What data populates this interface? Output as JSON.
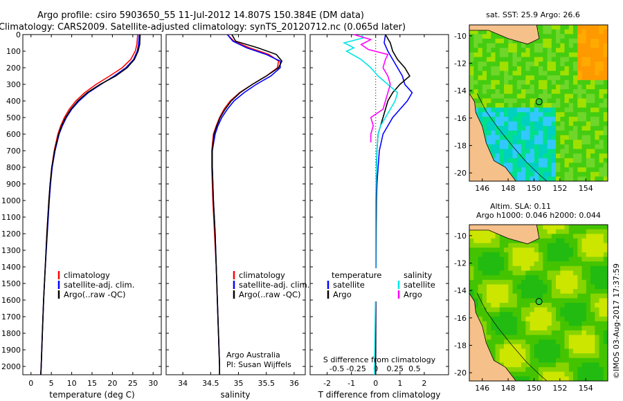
{
  "header": {
    "line1": "Argo profile: csiro 5903650_55 11-Jul-2012 14.807S 150.384E (DM data)",
    "line2": "Climatology: CARS2009. Satellite-adjusted climatology: synTS_20120712.nc (0.065d later)"
  },
  "colors": {
    "climatology": "#ff0000",
    "satellite": "#0000ff",
    "argo": "#000000",
    "salinity_satellite": "#00e5e5",
    "salinity_argo": "#ff00ff"
  },
  "chart_data": [
    {
      "type": "line",
      "name": "temperature-profile",
      "xlabel": "temperature (deg C)",
      "xlim": [
        -2,
        32
      ],
      "ylim": [
        2050,
        0
      ],
      "xticks": [
        0,
        5,
        10,
        15,
        20,
        25,
        30
      ],
      "yticks": [
        0,
        100,
        200,
        300,
        400,
        500,
        600,
        700,
        800,
        900,
        1000,
        1100,
        1200,
        1300,
        1400,
        1500,
        1600,
        1700,
        1800,
        1900,
        2000
      ],
      "legend": [
        "climatology",
        "satellite-adj. clim.",
        "Argo(..raw -QC)"
      ],
      "series": [
        {
          "name": "climatology",
          "depth": [
            0,
            60,
            100,
            150,
            200,
            250,
            300,
            350,
            400,
            450,
            500,
            550,
            600,
            700,
            800,
            900,
            1000,
            1200,
            1400,
            1600,
            1800,
            2000,
            2050
          ],
          "values": [
            26.2,
            26.0,
            25.6,
            24.5,
            22.4,
            19.3,
            16.0,
            13.2,
            11.0,
            9.4,
            8.2,
            7.3,
            6.6,
            5.7,
            5.1,
            4.7,
            4.4,
            3.9,
            3.5,
            3.1,
            2.8,
            2.5,
            2.4
          ]
        },
        {
          "name": "satellite-adj. clim.",
          "depth": [
            0,
            60,
            100,
            150,
            200,
            250,
            300,
            350,
            400,
            450,
            500,
            550,
            600,
            700,
            800,
            900,
            1000,
            1200,
            1400,
            1600,
            1800,
            2000,
            2050
          ],
          "values": [
            26.6,
            26.4,
            26.1,
            25.2,
            23.3,
            20.4,
            17.2,
            14.1,
            11.8,
            10.0,
            8.7,
            7.7,
            6.9,
            5.9,
            5.2,
            4.8,
            4.5,
            4.0,
            3.5,
            3.1,
            2.8,
            2.5,
            2.4
          ]
        },
        {
          "name": "Argo",
          "depth": [
            0,
            60,
            100,
            150,
            200,
            250,
            300,
            350,
            400,
            450,
            500,
            550,
            600,
            700,
            800,
            900,
            1000,
            1200,
            1400,
            1600,
            1800,
            2000,
            2050
          ],
          "values": [
            26.8,
            26.7,
            26.3,
            25.4,
            23.6,
            20.8,
            17.0,
            13.8,
            11.5,
            9.8,
            8.5,
            7.5,
            6.8,
            5.8,
            5.1,
            4.7,
            4.4,
            3.9,
            3.5,
            3.1,
            2.8,
            2.5,
            2.4
          ]
        }
      ]
    },
    {
      "type": "line",
      "name": "salinity-profile",
      "xlabel": "salinity",
      "xlim": [
        33.7,
        36.2
      ],
      "ylim": [
        2050,
        0
      ],
      "xticks": [
        34,
        34.5,
        35,
        35.5,
        36
      ],
      "legend": [
        "climatology",
        "satellite-adj. clim.",
        "Argo(..raw -QC)"
      ],
      "annotation": [
        "Argo Australia",
        "PI: Susan Wijffels"
      ],
      "series": [
        {
          "name": "climatology",
          "depth": [
            0,
            40,
            80,
            120,
            160,
            200,
            250,
            300,
            350,
            400,
            450,
            500,
            550,
            600,
            700,
            800,
            1000,
            1200,
            1400,
            1600,
            1800,
            2000,
            2050
          ],
          "values": [
            34.8,
            34.92,
            35.2,
            35.55,
            35.72,
            35.7,
            35.5,
            35.25,
            35.02,
            34.85,
            34.74,
            34.66,
            34.6,
            34.55,
            34.52,
            34.52,
            34.54,
            34.57,
            34.6,
            34.62,
            34.64,
            34.66,
            34.66
          ]
        },
        {
          "name": "satellite-adj. clim.",
          "depth": [
            0,
            40,
            80,
            120,
            160,
            200,
            250,
            300,
            350,
            400,
            450,
            500,
            550,
            600,
            700,
            800,
            1000,
            1200,
            1400,
            1600,
            1800,
            2000,
            2050
          ],
          "values": [
            34.8,
            34.9,
            35.15,
            35.5,
            35.75,
            35.75,
            35.58,
            35.32,
            35.1,
            34.92,
            34.8,
            34.7,
            34.63,
            34.58,
            34.53,
            34.53,
            34.55,
            34.58,
            34.6,
            34.62,
            34.64,
            34.66,
            34.66
          ]
        },
        {
          "name": "Argo",
          "depth": [
            0,
            40,
            80,
            120,
            160,
            200,
            250,
            300,
            350,
            400,
            450,
            500,
            550,
            600,
            700,
            800,
            1000,
            1200,
            1400,
            1600,
            1800,
            2000,
            2050
          ],
          "values": [
            34.88,
            34.95,
            35.35,
            35.68,
            35.78,
            35.72,
            35.5,
            35.25,
            35.03,
            34.87,
            34.76,
            34.67,
            34.61,
            34.56,
            34.53,
            34.53,
            34.55,
            34.58,
            34.6,
            34.62,
            34.64,
            34.66,
            34.66
          ]
        }
      ]
    },
    {
      "type": "line",
      "name": "difference-profile",
      "xlabel": "T difference from climatology",
      "x2label": "S difference from climatology",
      "xlim": [
        -2.7,
        3.0
      ],
      "ylim": [
        2050,
        0
      ],
      "xticks": [
        -2,
        -1,
        0,
        1,
        2
      ],
      "x2ticks": [
        {
          "pos": -1.6,
          "label": "-0.5"
        },
        {
          "pos": -0.8,
          "label": "-0.25"
        },
        {
          "pos": 0,
          "label": "0"
        },
        {
          "pos": 0.8,
          "label": "0.25"
        },
        {
          "pos": 1.6,
          "label": "0.5"
        }
      ],
      "legend_titles": [
        "temperature",
        "salinity"
      ],
      "legend": [
        "satellite",
        "Argo",
        "satellite",
        "Argo"
      ],
      "series": [
        {
          "name": "T satellite",
          "depth": [
            0,
            50,
            100,
            150,
            200,
            250,
            300,
            350,
            400,
            450,
            500,
            550,
            600,
            700,
            800,
            900,
            1000,
            1200,
            1500,
            2000,
            2050
          ],
          "values": [
            0.4,
            0.35,
            0.5,
            0.7,
            0.9,
            1.1,
            1.2,
            1.5,
            1.3,
            1.0,
            0.7,
            0.5,
            0.3,
            0.15,
            0.1,
            0.05,
            0.03,
            0.02,
            0.01,
            0.0,
            0.0
          ]
        },
        {
          "name": "T Argo",
          "depth": [
            0,
            50,
            100,
            150,
            200,
            250,
            300,
            350,
            400,
            450,
            500,
            550,
            600,
            700,
            800,
            1000,
            1200,
            1500,
            2000,
            2050
          ],
          "values": [
            0.4,
            0.6,
            0.7,
            0.9,
            1.2,
            1.4,
            1.0,
            0.7,
            0.5,
            0.4,
            0.3,
            0.2,
            0.1,
            0.05,
            0.03,
            0.02,
            0.01,
            0.0,
            0.0,
            0.0
          ]
        },
        {
          "name": "S satellite",
          "depth": [
            0,
            20,
            50,
            80,
            100,
            150,
            200,
            250,
            300,
            350,
            400,
            450,
            500,
            550,
            600,
            700,
            800,
            1000,
            1500,
            2000,
            2050
          ],
          "values": [
            -0.6,
            -0.5,
            -1.3,
            -0.9,
            -1.2,
            -0.6,
            -0.2,
            0.1,
            0.5,
            0.9,
            0.8,
            0.6,
            0.4,
            0.2,
            0.1,
            0.05,
            0.03,
            0.0,
            0.0,
            -0.05,
            -0.05
          ]
        },
        {
          "name": "S Argo",
          "depth": [
            0,
            30,
            60,
            90,
            120,
            150,
            200,
            250,
            300,
            350,
            400,
            450,
            500,
            550,
            600,
            650
          ],
          "values": [
            -0.9,
            -0.2,
            -0.6,
            -0.3,
            0.5,
            0.4,
            0.3,
            0.5,
            0.6,
            0.5,
            0.4,
            0.3,
            -0.2,
            -0.1,
            -0.2,
            -0.2
          ]
        }
      ]
    },
    {
      "type": "heatmap",
      "name": "sst-map",
      "title": "sat. SST: 25.9 Argo: 26.6",
      "xlim": [
        145,
        155.7
      ],
      "ylim": [
        -20.6,
        -9.2
      ],
      "xticks": [
        146,
        148,
        150,
        152,
        154
      ],
      "yticks": [
        -10,
        -12,
        -14,
        -16,
        -18,
        -20
      ],
      "argo_position": {
        "lon": 150.384,
        "lat": -14.807
      }
    },
    {
      "type": "heatmap",
      "name": "sla-map",
      "title1": "Altim. SLA: 0.11",
      "title2": "Argo h1000: 0.046 h2000: 0.044",
      "xlim": [
        145,
        155.7
      ],
      "ylim": [
        -20.6,
        -9.2
      ],
      "xticks": [
        146,
        148,
        150,
        152,
        154
      ],
      "yticks": [
        -10,
        -12,
        -14,
        -16,
        -18,
        -20
      ],
      "argo_position": {
        "lon": 150.384,
        "lat": -14.807
      }
    }
  ],
  "credit": "©IMOS 03-Aug-2017 17:37:59"
}
